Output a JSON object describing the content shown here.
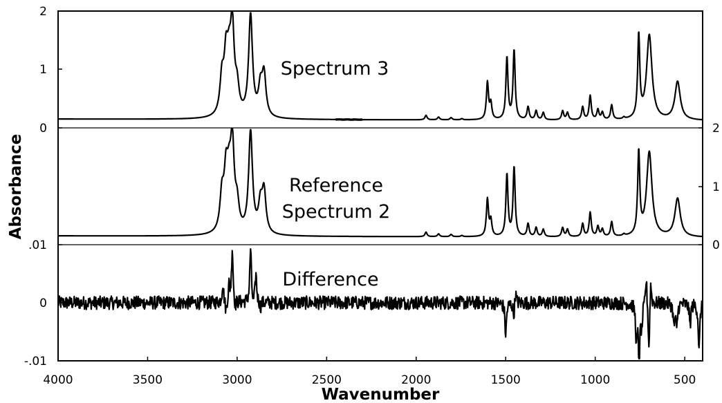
{
  "chart_data": {
    "type": "line",
    "xlabel": "Wavenumber",
    "ylabel": "Absorbance",
    "xlim": [
      4000,
      400
    ],
    "x_ticks": [
      "4000",
      "3500",
      "3000",
      "2500",
      "2000",
      "1500",
      "1000",
      "500"
    ],
    "left_axis_ticks": {
      "upper": [
        "2",
        "1",
        "0"
      ],
      "lower": [
        ".01",
        "0",
        "-.01"
      ]
    },
    "right_axis_ticks": [
      "2",
      "1",
      "0"
    ],
    "panels": [
      {
        "label": "Spectrum 3",
        "ylim": [
          0,
          2
        ],
        "baseline": 0.12,
        "peaks": [
          {
            "x": 3085,
            "y": 0.75
          },
          {
            "x": 3062,
            "y": 1.05
          },
          {
            "x": 3045,
            "y": 0.8
          },
          {
            "x": 3027,
            "y": 1.6
          },
          {
            "x": 3000,
            "y": 0.55
          },
          {
            "x": 2925,
            "y": 1.92
          },
          {
            "x": 2870,
            "y": 0.6
          },
          {
            "x": 2850,
            "y": 0.85
          },
          {
            "x": 1945,
            "y": 0.2
          },
          {
            "x": 1875,
            "y": 0.17
          },
          {
            "x": 1805,
            "y": 0.16
          },
          {
            "x": 1745,
            "y": 0.14
          },
          {
            "x": 1602,
            "y": 0.78
          },
          {
            "x": 1583,
            "y": 0.4
          },
          {
            "x": 1493,
            "y": 1.22
          },
          {
            "x": 1453,
            "y": 1.35
          },
          {
            "x": 1375,
            "y": 0.35
          },
          {
            "x": 1330,
            "y": 0.28
          },
          {
            "x": 1290,
            "y": 0.25
          },
          {
            "x": 1182,
            "y": 0.28
          },
          {
            "x": 1155,
            "y": 0.25
          },
          {
            "x": 1070,
            "y": 0.35
          },
          {
            "x": 1028,
            "y": 0.55
          },
          {
            "x": 985,
            "y": 0.3
          },
          {
            "x": 960,
            "y": 0.25
          },
          {
            "x": 908,
            "y": 0.38
          },
          {
            "x": 840,
            "y": 0.15
          },
          {
            "x": 757,
            "y": 1.58
          },
          {
            "x": 698,
            "y": 1.62
          },
          {
            "x": 540,
            "y": 0.8
          }
        ]
      },
      {
        "label": "Reference Spectrum 2",
        "ylim": [
          0,
          2
        ],
        "baseline": 0.12,
        "peaks": [
          {
            "x": 3085,
            "y": 0.75
          },
          {
            "x": 3062,
            "y": 1.05
          },
          {
            "x": 3045,
            "y": 0.8
          },
          {
            "x": 3027,
            "y": 1.6
          },
          {
            "x": 3000,
            "y": 0.55
          },
          {
            "x": 2925,
            "y": 1.92
          },
          {
            "x": 2870,
            "y": 0.6
          },
          {
            "x": 2850,
            "y": 0.85
          },
          {
            "x": 1945,
            "y": 0.2
          },
          {
            "x": 1875,
            "y": 0.17
          },
          {
            "x": 1805,
            "y": 0.16
          },
          {
            "x": 1745,
            "y": 0.14
          },
          {
            "x": 1602,
            "y": 0.78
          },
          {
            "x": 1583,
            "y": 0.4
          },
          {
            "x": 1493,
            "y": 1.22
          },
          {
            "x": 1453,
            "y": 1.35
          },
          {
            "x": 1375,
            "y": 0.35
          },
          {
            "x": 1330,
            "y": 0.28
          },
          {
            "x": 1290,
            "y": 0.25
          },
          {
            "x": 1182,
            "y": 0.28
          },
          {
            "x": 1155,
            "y": 0.25
          },
          {
            "x": 1070,
            "y": 0.35
          },
          {
            "x": 1028,
            "y": 0.55
          },
          {
            "x": 985,
            "y": 0.3
          },
          {
            "x": 960,
            "y": 0.25
          },
          {
            "x": 908,
            "y": 0.38
          },
          {
            "x": 840,
            "y": 0.15
          },
          {
            "x": 757,
            "y": 1.58
          },
          {
            "x": 698,
            "y": 1.62
          },
          {
            "x": 540,
            "y": 0.8
          }
        ]
      },
      {
        "label": "Difference",
        "ylim": [
          -0.01,
          0.01
        ],
        "baseline": 0,
        "noise": 0.0012,
        "features": [
          {
            "x": 3080,
            "y": 0.0035
          },
          {
            "x": 3062,
            "y": -0.002
          },
          {
            "x": 3045,
            "y": 0.003
          },
          {
            "x": 3027,
            "y": 0.0098
          },
          {
            "x": 3010,
            "y": -0.0012
          },
          {
            "x": 2925,
            "y": 0.0098
          },
          {
            "x": 2910,
            "y": -0.001
          },
          {
            "x": 2895,
            "y": 0.005
          },
          {
            "x": 2870,
            "y": -0.001
          },
          {
            "x": 1500,
            "y": -0.0058
          },
          {
            "x": 1455,
            "y": -0.0025
          },
          {
            "x": 1445,
            "y": 0.002
          },
          {
            "x": 770,
            "y": -0.0065
          },
          {
            "x": 755,
            "y": -0.0105
          },
          {
            "x": 740,
            "y": -0.004
          },
          {
            "x": 715,
            "y": 0.005
          },
          {
            "x": 700,
            "y": -0.009
          },
          {
            "x": 690,
            "y": 0.0048
          },
          {
            "x": 560,
            "y": -0.004
          },
          {
            "x": 545,
            "y": -0.0045
          },
          {
            "x": 470,
            "y": -0.004
          },
          {
            "x": 420,
            "y": -0.0085
          }
        ]
      }
    ],
    "grid": false,
    "legend": "none"
  }
}
